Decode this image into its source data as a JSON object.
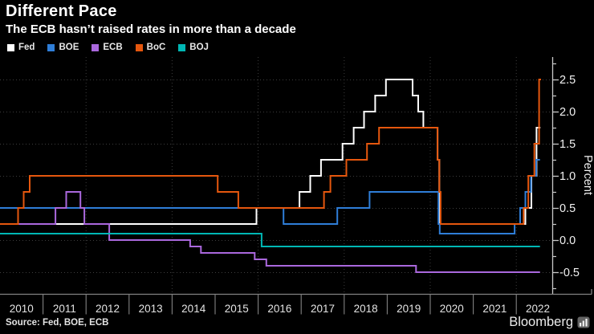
{
  "header": {
    "title": "Different Pace",
    "subtitle": "The ECB hasn’t raised rates in more than a decade"
  },
  "footer": {
    "source": "Source: Fed, BOE, ECB",
    "brand": "Bloomberg",
    "brand_icon": "bar-chart-icon"
  },
  "colors": {
    "background": "#000000",
    "grid": "#3d3d3d",
    "right_axis": "#c9c9c9",
    "right_axis_text": "#f2f2f2",
    "bottom_axis": "#828282",
    "bottom_axis_text": "#e3e3e3"
  },
  "chart_data": {
    "type": "line",
    "title": "Different Pace",
    "subtitle": "The ECB hasn’t raised rates in more than a decade",
    "xlabel": "",
    "ylabel": "Percent",
    "line_style": "step-post",
    "grid": true,
    "legend_position": "top-left",
    "xlim": [
      2010,
      2022.85
    ],
    "ylim": [
      -0.84,
      2.85
    ],
    "yticks_major": [
      2.5,
      2.0,
      1.5,
      1.0,
      0.5,
      0.0,
      -0.5
    ],
    "ytick_labels": [
      "2.5",
      "2.0",
      "1.5",
      "1.0",
      "0.5",
      "0.0",
      "-0.5"
    ],
    "yticks_minor": [
      2.75,
      2.25,
      1.75,
      1.25,
      0.75,
      0.25,
      -0.25,
      -0.75
    ],
    "x_year_labels": [
      "2010",
      "2011",
      "2012",
      "2013",
      "2014",
      "2015",
      "2016",
      "2017",
      "2018",
      "2019",
      "2020",
      "2021",
      "2022"
    ],
    "x_gridlines": [
      2012,
      2014,
      2016,
      2018,
      2020,
      2022
    ],
    "series": [
      {
        "name": "Fed",
        "color": "#ffffff",
        "points": [
          [
            2010.0,
            0.25
          ],
          [
            2015.96,
            0.5
          ],
          [
            2016.96,
            0.75
          ],
          [
            2017.21,
            1.0
          ],
          [
            2017.46,
            1.25
          ],
          [
            2017.96,
            1.5
          ],
          [
            2018.22,
            1.75
          ],
          [
            2018.46,
            2.0
          ],
          [
            2018.72,
            2.25
          ],
          [
            2018.97,
            2.5
          ],
          [
            2019.59,
            2.25
          ],
          [
            2019.72,
            2.0
          ],
          [
            2019.84,
            1.75
          ],
          [
            2020.17,
            1.25
          ],
          [
            2020.21,
            0.25
          ],
          [
            2022.21,
            0.5
          ],
          [
            2022.35,
            1.0
          ],
          [
            2022.47,
            1.75
          ],
          [
            2022.56,
            1.75
          ]
        ]
      },
      {
        "name": "BOE",
        "color": "#2f7ed8",
        "points": [
          [
            2010.0,
            0.5
          ],
          [
            2016.59,
            0.25
          ],
          [
            2017.84,
            0.5
          ],
          [
            2018.59,
            0.75
          ],
          [
            2020.19,
            0.25
          ],
          [
            2020.22,
            0.1
          ],
          [
            2021.96,
            0.25
          ],
          [
            2022.09,
            0.5
          ],
          [
            2022.21,
            0.75
          ],
          [
            2022.34,
            1.0
          ],
          [
            2022.46,
            1.25
          ],
          [
            2022.55,
            1.25
          ]
        ]
      },
      {
        "name": "ECB",
        "color": "#aa68dd",
        "points": [
          [
            2010.0,
            0.25
          ],
          [
            2011.29,
            0.5
          ],
          [
            2011.54,
            0.75
          ],
          [
            2011.87,
            0.5
          ],
          [
            2011.96,
            0.25
          ],
          [
            2012.54,
            0.0
          ],
          [
            2014.42,
            -0.1
          ],
          [
            2014.67,
            -0.2
          ],
          [
            2015.92,
            -0.3
          ],
          [
            2016.19,
            -0.4
          ],
          [
            2019.67,
            -0.5
          ],
          [
            2022.55,
            -0.5
          ]
        ]
      },
      {
        "name": "BoC",
        "color": "#e5570e",
        "points": [
          [
            2010.0,
            0.25
          ],
          [
            2010.42,
            0.5
          ],
          [
            2010.55,
            0.75
          ],
          [
            2010.69,
            1.0
          ],
          [
            2015.06,
            0.75
          ],
          [
            2015.54,
            0.5
          ],
          [
            2017.53,
            0.75
          ],
          [
            2017.68,
            1.0
          ],
          [
            2018.05,
            1.25
          ],
          [
            2018.53,
            1.5
          ],
          [
            2018.81,
            1.75
          ],
          [
            2020.17,
            1.25
          ],
          [
            2020.21,
            0.75
          ],
          [
            2020.24,
            0.25
          ],
          [
            2022.17,
            0.5
          ],
          [
            2022.28,
            1.0
          ],
          [
            2022.42,
            1.5
          ],
          [
            2022.53,
            2.5
          ],
          [
            2022.575,
            2.5
          ]
        ]
      },
      {
        "name": "BOJ",
        "color": "#00b7b4",
        "points": [
          [
            2010.0,
            0.1
          ],
          [
            2016.08,
            -0.1
          ],
          [
            2022.55,
            -0.1
          ]
        ]
      }
    ]
  }
}
